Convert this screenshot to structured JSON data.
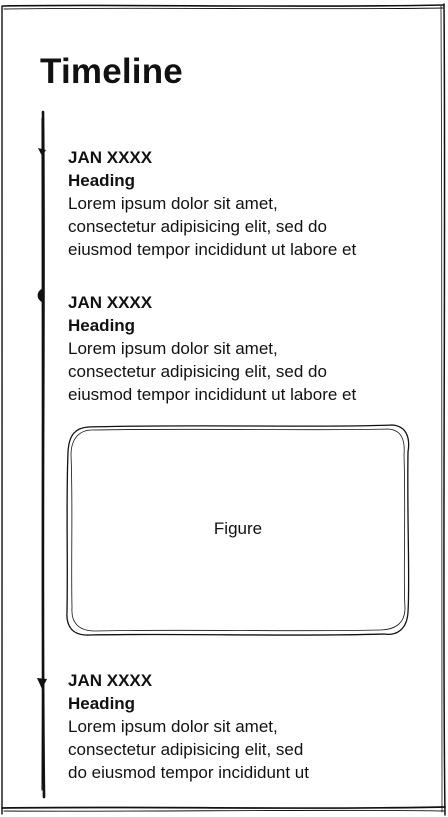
{
  "page": {
    "title": "Timeline"
  },
  "entries": [
    {
      "date": "JAN XXXX",
      "heading": "Heading",
      "body": [
        "Lorem ipsum dolor sit amet,",
        "consectetur adipisicing elit, sed do",
        "eiusmod tempor incididunt ut labore et"
      ]
    },
    {
      "date": "JAN XXXX",
      "heading": "Heading",
      "body": [
        "Lorem ipsum dolor sit amet,",
        "consectetur adipisicing elit, sed do",
        "eiusmod tempor incididunt ut labore et"
      ]
    },
    {
      "date": "JAN XXXX",
      "heading": "Heading",
      "body": [
        "Lorem ipsum dolor sit amet,",
        "consectetur adipisicing elit, sed",
        "do eiusmod tempor incididunt ut"
      ]
    }
  ],
  "figure": {
    "label": "Figure"
  },
  "colors": {
    "ink": "#111111",
    "background": "#ffffff"
  }
}
